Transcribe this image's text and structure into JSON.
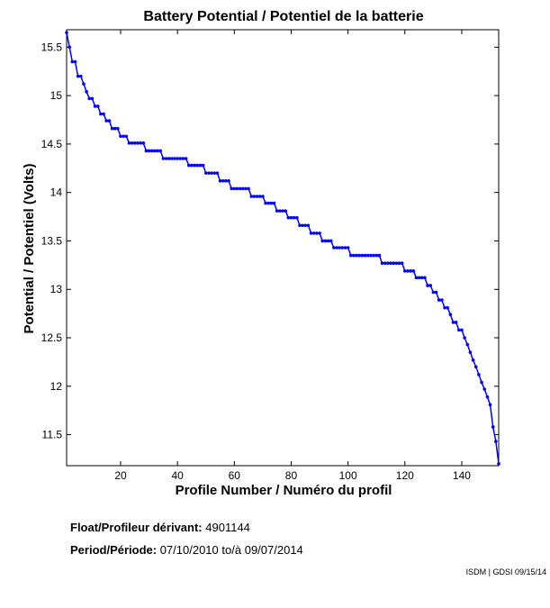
{
  "chart_data": {
    "type": "line",
    "title": "Battery Potential / Potentiel de la batterie",
    "xlabel": "Profile Number / Numéro du profil",
    "ylabel": "Potential / Potentiel (Volts)",
    "xlim": [
      1,
      153
    ],
    "ylim": [
      11.18,
      15.68
    ],
    "xticks": [
      20,
      40,
      60,
      80,
      100,
      120,
      140
    ],
    "yticks": [
      11.5,
      12,
      12.5,
      13,
      13.5,
      14,
      14.5,
      15,
      15.5
    ],
    "grid": false,
    "series_color": "#0000ff",
    "series": [
      {
        "x": [
          1,
          2,
          3,
          4,
          5,
          6,
          7,
          8,
          9,
          10,
          11,
          12,
          13,
          14,
          15,
          16,
          17,
          18,
          19,
          20,
          21,
          22,
          23,
          24,
          25,
          26,
          27,
          28,
          29,
          30,
          31,
          32,
          33,
          34,
          35,
          36,
          37,
          38,
          39,
          40,
          41,
          42,
          43,
          44,
          45,
          46,
          47,
          48,
          49,
          50,
          51,
          52,
          53,
          54,
          55,
          56,
          57,
          58,
          59,
          60,
          61,
          62,
          63,
          64,
          65,
          66,
          67,
          68,
          69,
          70,
          71,
          72,
          73,
          74,
          75,
          76,
          77,
          78,
          79,
          80,
          81,
          82,
          83,
          84,
          85,
          86,
          87,
          88,
          89,
          90,
          91,
          92,
          93,
          94,
          95,
          96,
          97,
          98,
          99,
          100,
          101,
          102,
          103,
          104,
          105,
          106,
          107,
          108,
          109,
          110,
          111,
          112,
          113,
          114,
          115,
          116,
          117,
          118,
          119,
          120,
          121,
          122,
          123,
          124,
          125,
          126,
          127,
          128,
          129,
          130,
          131,
          132,
          133,
          134,
          135,
          136,
          137,
          138,
          139,
          140,
          141,
          142,
          143,
          144,
          145,
          146,
          147,
          148,
          149,
          150,
          151,
          152,
          153
        ],
        "y": [
          15.65,
          15.5,
          15.35,
          15.35,
          15.2,
          15.2,
          15.12,
          15.04,
          14.97,
          14.97,
          14.89,
          14.89,
          14.81,
          14.81,
          14.74,
          14.74,
          14.66,
          14.66,
          14.66,
          14.58,
          14.58,
          14.58,
          14.51,
          14.51,
          14.51,
          14.51,
          14.51,
          14.51,
          14.43,
          14.43,
          14.43,
          14.43,
          14.43,
          14.43,
          14.35,
          14.35,
          14.35,
          14.35,
          14.35,
          14.35,
          14.35,
          14.35,
          14.35,
          14.28,
          14.28,
          14.28,
          14.28,
          14.28,
          14.28,
          14.2,
          14.2,
          14.2,
          14.2,
          14.2,
          14.12,
          14.12,
          14.12,
          14.12,
          14.04,
          14.04,
          14.04,
          14.04,
          14.04,
          14.04,
          14.04,
          13.96,
          13.96,
          13.96,
          13.96,
          13.96,
          13.89,
          13.89,
          13.89,
          13.89,
          13.81,
          13.81,
          13.81,
          13.81,
          13.74,
          13.74,
          13.74,
          13.74,
          13.66,
          13.66,
          13.66,
          13.66,
          13.58,
          13.58,
          13.58,
          13.58,
          13.5,
          13.5,
          13.5,
          13.5,
          13.43,
          13.43,
          13.43,
          13.43,
          13.43,
          13.43,
          13.35,
          13.35,
          13.35,
          13.35,
          13.35,
          13.35,
          13.35,
          13.35,
          13.35,
          13.35,
          13.35,
          13.27,
          13.27,
          13.27,
          13.27,
          13.27,
          13.27,
          13.27,
          13.27,
          13.19,
          13.19,
          13.19,
          13.19,
          13.12,
          13.12,
          13.12,
          13.12,
          13.04,
          13.04,
          12.97,
          12.97,
          12.89,
          12.89,
          12.81,
          12.81,
          12.74,
          12.66,
          12.66,
          12.58,
          12.58,
          12.5,
          12.43,
          12.35,
          12.27,
          12.2,
          12.12,
          12.04,
          11.97,
          11.89,
          11.81,
          11.58,
          11.43,
          11.2
        ]
      }
    ]
  },
  "info": {
    "float_label": "Float/Profileur dérivant:",
    "float_value": "4901144",
    "period_label": "Period/Période:",
    "period_start": "07/10/2010",
    "period_sep": "to/à",
    "period_end": "09/07/2014"
  },
  "credit": "ISDM | GDSI 09/15/14"
}
